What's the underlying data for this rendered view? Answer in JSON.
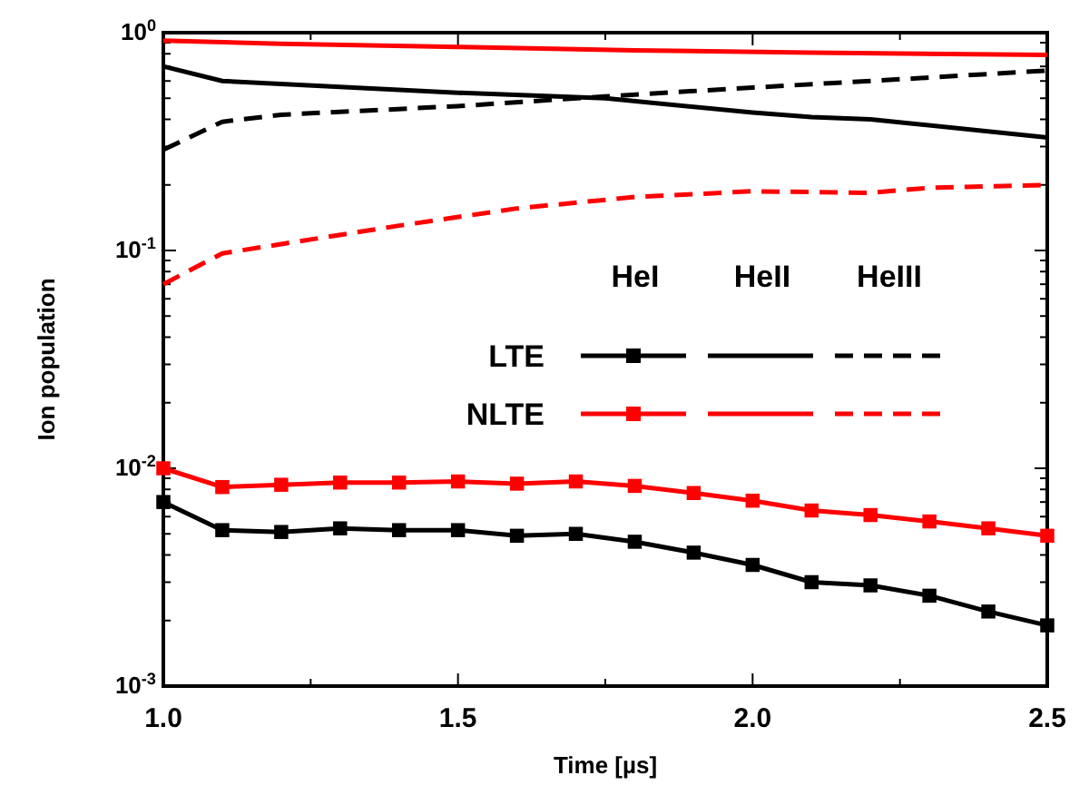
{
  "chart_data": {
    "type": "line",
    "xlabel": "Time [µs]",
    "ylabel": "Ion population",
    "log": "y",
    "xlim": [
      1.0,
      2.5
    ],
    "xticks": [
      {
        "value": 1.0,
        "label": "1.0"
      },
      {
        "value": 1.25,
        "label": null
      },
      {
        "value": 1.5,
        "label": "1.5"
      },
      {
        "value": 1.75,
        "label": null
      },
      {
        "value": 2.0,
        "label": "2.0"
      },
      {
        "value": 2.25,
        "label": null
      },
      {
        "value": 2.5,
        "label": "2.5"
      }
    ],
    "ylim": [
      0.001,
      1
    ],
    "yticks": [
      {
        "value": 0.001,
        "label": "10$^{-3}$"
      },
      {
        "value": 0.002,
        "label": null
      },
      {
        "value": 0.003,
        "label": null
      },
      {
        "value": 0.004,
        "label": null
      },
      {
        "value": 0.005,
        "label": null
      },
      {
        "value": 0.006,
        "label": null
      },
      {
        "value": 0.007,
        "label": null
      },
      {
        "value": 0.008,
        "label": null
      },
      {
        "value": 0.009,
        "label": null
      },
      {
        "value": 0.01,
        "label": "10$^{-2}$"
      },
      {
        "value": 0.02,
        "label": null
      },
      {
        "value": 0.03,
        "label": null
      },
      {
        "value": 0.04,
        "label": null
      },
      {
        "value": 0.05,
        "label": null
      },
      {
        "value": 0.06,
        "label": null
      },
      {
        "value": 0.07,
        "label": null
      },
      {
        "value": 0.08,
        "label": null
      },
      {
        "value": 0.09,
        "label": null
      },
      {
        "value": 0.1,
        "label": "10$^{-1}$"
      },
      {
        "value": 0.2,
        "label": null
      },
      {
        "value": 0.3,
        "label": null
      },
      {
        "value": 0.4,
        "label": null
      },
      {
        "value": 0.5,
        "label": null
      },
      {
        "value": 0.6,
        "label": null
      },
      {
        "value": 0.7,
        "label": null
      },
      {
        "value": 0.8,
        "label": null
      },
      {
        "value": 0.9,
        "label": null
      },
      {
        "value": 1,
        "label": "10$^{0}$"
      }
    ],
    "grid": false,
    "annotations": [
      "HeI",
      "HeII",
      "HeIII",
      "LTE",
      "NLTE"
    ],
    "series": [
      {
        "color": "#000000",
        "marker": "square",
        "line_style": "solid",
        "x": [
          1.0,
          1.1,
          1.2,
          1.3,
          1.4,
          1.5,
          1.6,
          1.7,
          1.8,
          1.9,
          2.0,
          2.1,
          2.2,
          2.3,
          2.4,
          2.5
        ],
        "values": [
          0.007,
          0.0052,
          0.0051,
          0.0053,
          0.0052,
          0.0052,
          0.0049,
          0.005,
          0.0046,
          0.0041,
          0.0036,
          0.003,
          0.0029,
          0.0026,
          0.0022,
          0.0019
        ]
      },
      {
        "color": "#000000",
        "marker": "none",
        "line_style": "solid",
        "x": [
          1.0,
          1.1,
          1.5,
          1.75,
          2.0,
          2.1,
          2.2,
          2.5
        ],
        "values": [
          0.7,
          0.6,
          0.53,
          0.5,
          0.43,
          0.41,
          0.4,
          0.33
        ]
      },
      {
        "color": "#000000",
        "marker": "none",
        "line_style": "dashed",
        "x": [
          1.0,
          1.1,
          1.2,
          1.5,
          1.75,
          2.0,
          2.2,
          2.5
        ],
        "values": [
          0.29,
          0.39,
          0.42,
          0.46,
          0.51,
          0.56,
          0.6,
          0.67
        ]
      },
      {
        "color": "#ff0000",
        "marker": "square",
        "line_style": "solid",
        "x": [
          1.0,
          1.1,
          1.2,
          1.3,
          1.4,
          1.5,
          1.6,
          1.7,
          1.8,
          1.9,
          2.0,
          2.1,
          2.2,
          2.3,
          2.4,
          2.5
        ],
        "values": [
          0.01,
          0.0082,
          0.0084,
          0.0086,
          0.0086,
          0.0087,
          0.0085,
          0.0087,
          0.0083,
          0.0077,
          0.0071,
          0.0064,
          0.0061,
          0.0057,
          0.0053,
          0.0049
        ]
      },
      {
        "color": "#ff0000",
        "marker": "none",
        "line_style": "solid",
        "x": [
          1.0,
          1.2,
          1.5,
          1.8,
          2.1,
          2.5
        ],
        "values": [
          0.92,
          0.89,
          0.86,
          0.83,
          0.81,
          0.79
        ]
      },
      {
        "color": "#ff0000",
        "marker": "none",
        "line_style": "dashed",
        "x": [
          1.0,
          1.1,
          1.2,
          1.4,
          1.6,
          1.8,
          2.0,
          2.2,
          2.3,
          2.5
        ],
        "values": [
          0.07,
          0.097,
          0.107,
          0.13,
          0.156,
          0.176,
          0.187,
          0.184,
          0.194,
          0.2
        ]
      }
    ]
  }
}
